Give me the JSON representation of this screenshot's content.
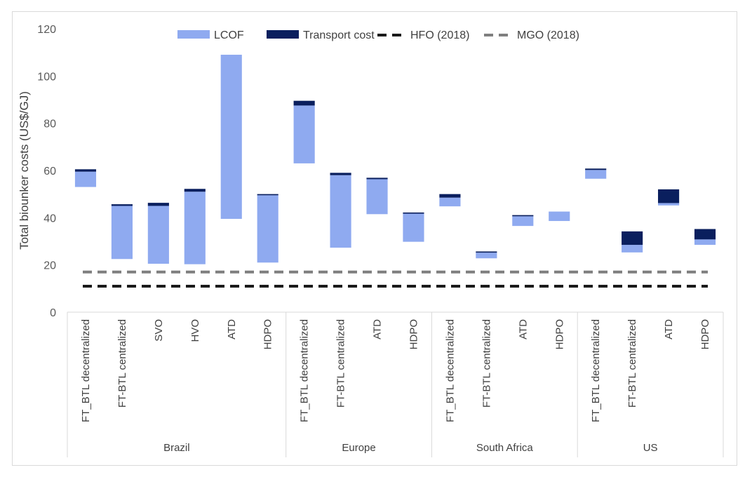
{
  "chart_data": {
    "type": "bar",
    "subtype": "floating-stacked-bar",
    "ylabel": "Total biounker costs (US$/GJ)",
    "xlabel": "",
    "ylim": [
      0,
      120
    ],
    "yticks": [
      0,
      20,
      40,
      60,
      80,
      100,
      120
    ],
    "grid": false,
    "legend_position": "top",
    "legend": [
      {
        "name": "LCOF",
        "kind": "bar",
        "color": "#8faaf0"
      },
      {
        "name": "Transport cost",
        "kind": "bar",
        "color": "#0a1f5e"
      },
      {
        "name": "HFO (2018)",
        "kind": "dashed-line",
        "color": "#1a1a1a"
      },
      {
        "name": "MGO (2018)",
        "kind": "dashed-line",
        "color": "#7f7f7f"
      }
    ],
    "reference_lines": [
      {
        "name": "HFO (2018)",
        "value": 11,
        "color": "#1a1a1a"
      },
      {
        "name": "MGO (2018)",
        "value": 17,
        "color": "#7f7f7f"
      }
    ],
    "groups": [
      {
        "name": "Brazil",
        "items": [
          {
            "label": "FT_BTL decentralized",
            "lcof": [
              53,
              59.5
            ],
            "transport": [
              59.5,
              60.5
            ]
          },
          {
            "label": "FT-BTL centralized",
            "lcof": [
              22.5,
              45
            ],
            "transport": [
              45,
              45.7
            ]
          },
          {
            "label": "SVO",
            "lcof": [
              20.5,
              45
            ],
            "transport": [
              45,
              46.3
            ]
          },
          {
            "label": "HVO",
            "lcof": [
              20.3,
              51
            ],
            "transport": [
              51,
              52.2
            ]
          },
          {
            "label": "ATD",
            "lcof": [
              39.5,
              109
            ],
            "transport": [
              109,
              109
            ]
          },
          {
            "label": "HDPO",
            "lcof": [
              21,
              49.5
            ],
            "transport": [
              49.5,
              50
            ]
          }
        ]
      },
      {
        "name": "Europe",
        "items": [
          {
            "label": "FT_BTL decentralized",
            "lcof": [
              63,
              87.5
            ],
            "transport": [
              87.5,
              89.5
            ]
          },
          {
            "label": "FT-BTL centralized",
            "lcof": [
              27.3,
              58
            ],
            "transport": [
              58,
              59
            ]
          },
          {
            "label": "ATD",
            "lcof": [
              41.5,
              56.3
            ],
            "transport": [
              56.3,
              56.9
            ]
          },
          {
            "label": "HDPO",
            "lcof": [
              29.8,
              41.7
            ],
            "transport": [
              41.7,
              42.2
            ]
          }
        ]
      },
      {
        "name": "South Africa",
        "items": [
          {
            "label": "FT_BTL decentralized",
            "lcof": [
              44.8,
              48.5
            ],
            "transport": [
              48.5,
              50
            ]
          },
          {
            "label": "FT-BTL centralized",
            "lcof": [
              22.8,
              25.2
            ],
            "transport": [
              25.2,
              25.7
            ]
          },
          {
            "label": "ATD",
            "lcof": [
              36.5,
              40.6
            ],
            "transport": [
              40.6,
              41.1
            ]
          },
          {
            "label": "HDPO",
            "lcof": [
              38.6,
              42.6
            ],
            "transport": [
              42.6,
              42.6
            ]
          }
        ]
      },
      {
        "name": "US",
        "items": [
          {
            "label": "FT_BTL decentralized",
            "lcof": [
              56.5,
              60.2
            ],
            "transport": [
              60.2,
              60.8
            ]
          },
          {
            "label": "FT-BTL centralized",
            "lcof": [
              25.3,
              28.5
            ],
            "transport": [
              28.5,
              34.2
            ]
          },
          {
            "label": "ATD",
            "lcof": [
              45.2,
              46.2
            ],
            "transport": [
              46.2,
              52
            ]
          },
          {
            "label": "HDPO",
            "lcof": [
              28.5,
              30.8
            ],
            "transport": [
              30.8,
              35.2
            ]
          }
        ]
      }
    ]
  }
}
